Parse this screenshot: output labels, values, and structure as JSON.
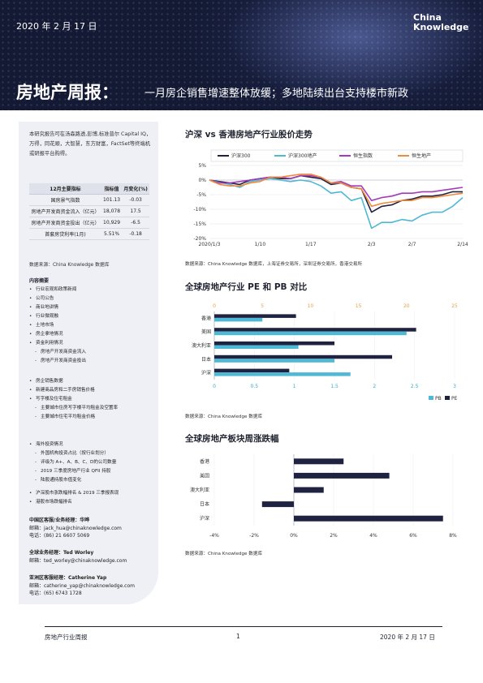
{
  "header": {
    "date": "2020 年 2 月 17 日",
    "logo_line1": "China",
    "logo_line2": "Knowledge",
    "title": "房地产周报：",
    "subtitle": "一月房企销售增速整体放缓；多地陆续出台支持楼市新政"
  },
  "sidebar": {
    "intro": "本研究报告可在汤森路透,彭博,标准普尔 Capital IQ，万得，同花顺，大智慧，东方财富，FactSet等终端机或研报平台购得。",
    "table": {
      "headers": [
        "12月主要指标",
        "指标值",
        "月变化(%)"
      ],
      "rows": [
        [
          "国房景气指数",
          "101.13",
          "-0.03"
        ],
        [
          "房地产开发商资金流入（亿元）",
          "18,078",
          "17.5"
        ],
        [
          "房地产开发商资金投出（亿元）",
          "10,929",
          "-6.5"
        ],
        [
          "首套房贷利率(1月)",
          "5.51%",
          "-0.18"
        ]
      ]
    },
    "table_source": "数据来源：China Knowledge 数据库",
    "contents_title": "内容摘要",
    "toc_group1": [
      {
        "t": "b",
        "text": "行业宏观和政策新闻"
      },
      {
        "t": "b",
        "text": "公司公告"
      },
      {
        "t": "b",
        "text": "商业地讲情"
      },
      {
        "t": "b",
        "text": "行业微观融"
      },
      {
        "t": "b",
        "text": "土地市场"
      },
      {
        "t": "b",
        "text": "房企拿地情况"
      },
      {
        "t": "b",
        "text": "资金利用情况"
      },
      {
        "t": "d",
        "text": "房地产开发商资金流入"
      },
      {
        "t": "d",
        "text": "房地产开发商资金投出"
      }
    ],
    "toc_group2": [
      {
        "t": "b",
        "text": "房企销售数据"
      },
      {
        "t": "b",
        "text": "新建商品房和二手房销售价格"
      },
      {
        "t": "b",
        "text": "写字楼及住宅租金"
      },
      {
        "t": "d",
        "text": "主要城市住房写字楼平均租金及空置率"
      },
      {
        "t": "d",
        "text": "主要城市住宅平均租金价格"
      }
    ],
    "toc_group3": [
      {
        "t": "b",
        "text": "海外投资情况"
      },
      {
        "t": "d",
        "text": "外国机构投资占比（按行业划分）"
      },
      {
        "t": "d",
        "text": "评级为 A+、A、B、C、D的公司数量"
      },
      {
        "t": "d",
        "text": "2019 三季度房地产行业 QFII 持股"
      },
      {
        "t": "d",
        "text": "陆股通持股市值变化"
      }
    ],
    "toc_group4": [
      {
        "t": "b",
        "text": "沪深股市涨跌幅排名 & 2019 三季报表现"
      },
      {
        "t": "b",
        "text": "港股市场跌幅排名"
      }
    ],
    "contacts": [
      {
        "role": "中国区客服/业务经理：华晔",
        "email": "邮箱：jack_hua@chinaknowledge.com",
        "phone": "电话：(86) 21 6607 5069"
      },
      {
        "role": "全球业务经理：Ted Worley",
        "email": "邮箱：ted_worley@chinaknowledge.com",
        "phone": ""
      },
      {
        "role": "亚洲区客服经理：Catherine Yap",
        "email": "邮箱：catherine_yap@chinaknowledge.com",
        "phone": "电话：(65) 6743 1728"
      }
    ]
  },
  "section1": {
    "title": "沪深 vs 香港房地产行业股价走势",
    "source": "数据来源：China Knowledge 数据库，上海证券交易所，深圳证券交易所，香港交易所"
  },
  "section2": {
    "title": "全球房地产行业 PE 和 PB 对比",
    "source": "数据来源：China Knowledge 数据库"
  },
  "section3": {
    "title": "全球房地产板块周涨跌幅",
    "source": "数据来源：China Knowledge 数据库"
  },
  "footer": {
    "left": "房地产行业周报",
    "page": "1",
    "right": "2020 年 2 月 17 日"
  },
  "chart_data": [
    {
      "type": "line",
      "x": [
        "2020/1/3",
        "1/6",
        "1/7",
        "1/8",
        "1/9",
        "1/10",
        "1/13",
        "1/14",
        "1/15",
        "1/16",
        "1/17",
        "1/20",
        "1/21",
        "1/22",
        "1/23",
        "1/24",
        "2/3",
        "2/4",
        "2/5",
        "2/6",
        "2/7",
        "2/10",
        "2/11",
        "2/12",
        "2/13",
        "2/14"
      ],
      "xticks": [
        "2020/1/3",
        "1/10",
        "1/17",
        "2/3",
        "2/7",
        "2/14"
      ],
      "ylim": [
        -20,
        5
      ],
      "yticks": [
        5,
        0,
        -5,
        -10,
        -15,
        -20
      ],
      "ytick_labels": [
        "5%",
        "0%",
        "-5%",
        "-10%",
        "-15%",
        "-20%"
      ],
      "series": [
        {
          "name": "沪深300",
          "color": "#1f2240",
          "values": [
            0,
            -0.5,
            -1,
            -1.5,
            0,
            0.5,
            1,
            0.5,
            0.5,
            1.5,
            1,
            0.5,
            -1.5,
            -1,
            -2.5,
            -3,
            -11,
            -9,
            -8.5,
            -7,
            -6.5,
            -5.5,
            -5.5,
            -5,
            -4,
            -4
          ]
        },
        {
          "name": "沪深300地产",
          "color": "#4fb8d4",
          "values": [
            0,
            -0.8,
            -1.5,
            -2.5,
            -0.5,
            0,
            0.5,
            0,
            -0.5,
            0,
            -0.5,
            -2,
            -4.5,
            -4,
            -7,
            -6,
            -16.5,
            -14.5,
            -14.5,
            -13.5,
            -14,
            -12,
            -11,
            -11,
            -9,
            -6
          ]
        },
        {
          "name": "恒生指数",
          "color": "#a23bb8",
          "values": [
            0,
            -1,
            -1,
            -0.5,
            0,
            0.5,
            1,
            1,
            0.5,
            1.5,
            1.5,
            1,
            -1,
            -0.5,
            -2,
            -2,
            -7,
            -6,
            -5.5,
            -4.5,
            -4.5,
            -4,
            -4,
            -3.5,
            -3,
            -2.5
          ]
        },
        {
          "name": "恒生地产",
          "color": "#f08a3c",
          "values": [
            0,
            -1.5,
            -2,
            -2,
            -1,
            -0.5,
            1,
            1,
            1.5,
            2,
            2,
            1,
            -1,
            -1,
            -2.5,
            -3,
            -9,
            -8,
            -7.5,
            -7,
            -7,
            -6,
            -6,
            -5.5,
            -5,
            -4.5
          ]
        }
      ]
    },
    {
      "type": "bar",
      "orientation": "horizontal",
      "categories": [
        "香港",
        "美国",
        "澳大利亚",
        "日本",
        "沪深"
      ],
      "series": [
        {
          "name": "PB",
          "color": "#4fb8d4",
          "axis": "bottom",
          "values": [
            0.6,
            2.4,
            1.05,
            1.5,
            1.7
          ]
        },
        {
          "name": "PE",
          "color": "#1f2240",
          "axis": "top",
          "values": [
            8.5,
            21.0,
            12.5,
            18.5,
            7.8
          ]
        }
      ],
      "top_axis": {
        "ticks": [
          0,
          5,
          10,
          15,
          20,
          25
        ],
        "labels": [
          "0",
          "5",
          "10",
          "15",
          "20",
          "25"
        ],
        "range": [
          0,
          25
        ]
      },
      "bottom_axis": {
        "ticks": [
          0,
          0.5,
          1,
          1.5,
          2,
          2.5,
          3
        ],
        "labels": [
          "0",
          "0.5",
          "1",
          "1.5",
          "2",
          "2.5",
          "3"
        ],
        "range": [
          0,
          3
        ]
      }
    },
    {
      "type": "bar",
      "orientation": "horizontal",
      "categories": [
        "香港",
        "美国",
        "澳大利亚",
        "日本",
        "沪深"
      ],
      "values": [
        2.5,
        4.8,
        1.5,
        -1.6,
        7.5
      ],
      "color": "#1f2240",
      "xlim": [
        -4,
        8
      ],
      "xticks": [
        -4,
        -2,
        0,
        2,
        4,
        6,
        8
      ],
      "xtick_labels": [
        "-4%",
        "-2%",
        "0%",
        "2%",
        "4%",
        "6%",
        "8%"
      ]
    }
  ]
}
